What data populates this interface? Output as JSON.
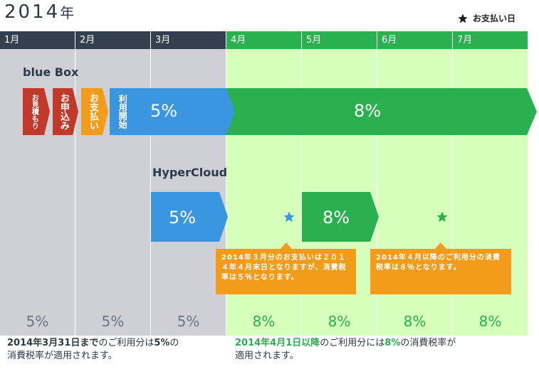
{
  "year": {
    "number": "2014",
    "suffix": "年"
  },
  "legend": {
    "label": "お支払い日",
    "icon": "star-icon"
  },
  "months": [
    "1月",
    "2月",
    "3月",
    "4月",
    "5月",
    "6月",
    "7月"
  ],
  "products": [
    {
      "name": "blue Box",
      "steps": [
        "お見積もり",
        "お申込み",
        "お支払い",
        "利用開始"
      ],
      "rate_before": "5%",
      "rate_after": "8%"
    },
    {
      "name": "HyperCloud",
      "rate_before": "5%",
      "rate_after": "8%"
    }
  ],
  "notes": [
    "2014年３月分のお支払いは２０１４年４月末日となりますが、消費税率は５％となります。",
    "2014年４月以降のご利用分の消費税率は８％となります。"
  ],
  "monthly_rates": [
    "5%",
    "5%",
    "5%",
    "8%",
    "8%",
    "8%",
    "8%"
  ],
  "footer": {
    "left_highlight": "2014年3月31日まで",
    "left_rest_1": "のご利用分は",
    "left_rate": "5%",
    "left_rest_2": "の",
    "left_line2": "消費税率が適用されます。",
    "right_highlight": "2014年4月1日以降",
    "right_rest_1": "のご利用分には",
    "right_rate": "8%",
    "right_rest_2": "の消費税率が",
    "right_line2": "適用されます。"
  },
  "colors": {
    "dark": "#34404f",
    "green": "#2bb04f",
    "blue": "#3a96de",
    "red": "#c0392b",
    "orange": "#f39c1b",
    "gray_bg": "#cfcfd6",
    "green_bg": "#d6ffbc"
  }
}
